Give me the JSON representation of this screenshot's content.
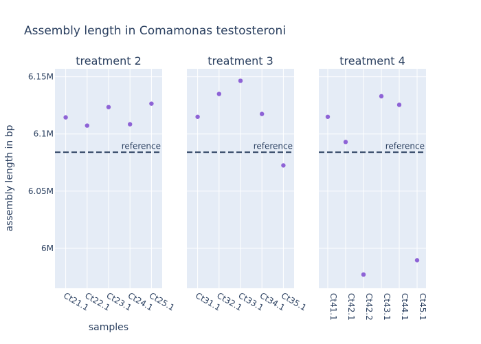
{
  "chart_data": {
    "type": "scatter",
    "title": "Assembly length in Comamonas testosteroni",
    "xlabel": "samples",
    "ylabel": "assembly length in bp",
    "ylim": [
      5965000,
      6157000
    ],
    "yticks": [
      6000000,
      6050000,
      6100000,
      6150000
    ],
    "ytick_labels": [
      "6M",
      "6.05M",
      "6.1M",
      "6.15M"
    ],
    "reference": {
      "label": "reference",
      "value": 6084000,
      "color": "#2a3f5f"
    },
    "marker_color": "#8e63d6",
    "grid": true,
    "panels": [
      {
        "title": "treatment 2",
        "categories": [
          "Ct21.1",
          "Ct22.1",
          "Ct23.1",
          "Ct24.1",
          "Ct25.1"
        ],
        "values": [
          6114500,
          6107300,
          6123500,
          6108500,
          6126500
        ]
      },
      {
        "title": "treatment 3",
        "categories": [
          "Ct31.1",
          "Ct32.1",
          "Ct33.1",
          "Ct34.1",
          "Ct35.1"
        ],
        "values": [
          6115000,
          6135000,
          6146500,
          6117500,
          6072500
        ]
      },
      {
        "title": "treatment 4",
        "categories": [
          "Ct41.1",
          "Ct42.1",
          "Ct42.2",
          "Ct43.1",
          "Ct44.1",
          "Ct45.1"
        ],
        "values": [
          6115000,
          6093000,
          5977000,
          6133000,
          6125500,
          5989500
        ]
      }
    ]
  }
}
